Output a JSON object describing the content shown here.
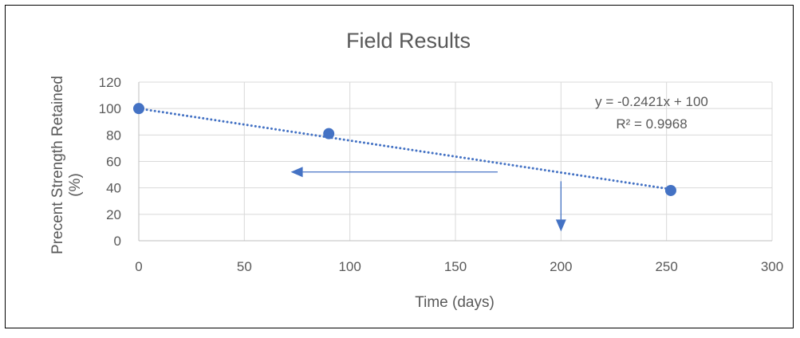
{
  "chart_data": {
    "type": "scatter",
    "title": "Field Results",
    "xlabel": "Time (days)",
    "ylabel_line1": "Precent Strength Retained",
    "ylabel_line2": "(%)",
    "xlim": [
      0,
      300
    ],
    "ylim": [
      0,
      120
    ],
    "x_ticks": [
      0,
      50,
      100,
      150,
      200,
      250,
      300
    ],
    "y_ticks": [
      0,
      20,
      40,
      60,
      80,
      100,
      120
    ],
    "grid": true,
    "legend": "none",
    "points": [
      {
        "x": 0,
        "y": 100
      },
      {
        "x": 90,
        "y": 81
      },
      {
        "x": 252,
        "y": 38
      }
    ],
    "trendline": {
      "type": "linear",
      "slope": -0.2421,
      "intercept": 100,
      "x_range": [
        0,
        252
      ],
      "equation": "y = -0.2421x + 100",
      "r_squared": "R² = 0.9968"
    },
    "annotations": [
      {
        "type": "arrow",
        "direction": "left",
        "from": [
          170,
          52
        ],
        "to": [
          72,
          52
        ]
      },
      {
        "type": "arrow",
        "direction": "down",
        "from": [
          200,
          45
        ],
        "to": [
          200,
          7
        ]
      }
    ],
    "colors": {
      "marker": "#4472c4",
      "trendline": "#4472c4",
      "arrow": "#4472c4",
      "grid": "#d9d9d9",
      "axis": "#bfbfbf",
      "text": "#595959",
      "border": "#000000"
    }
  }
}
